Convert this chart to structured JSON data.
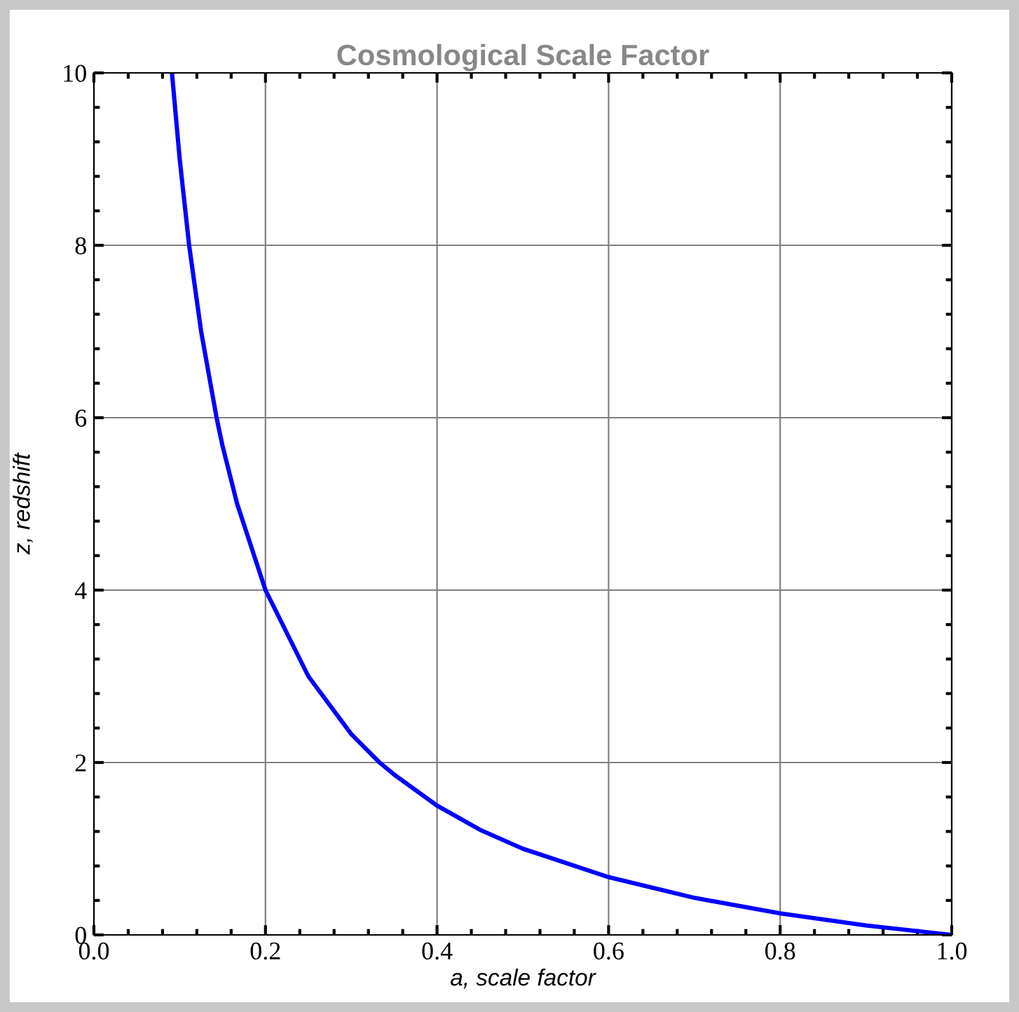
{
  "chart_data": {
    "type": "line",
    "title": "Cosmological Scale Factor",
    "xlabel": "a, scale factor",
    "ylabel": "z, redshift",
    "x": [
      0.091,
      0.1,
      0.111,
      0.125,
      0.143,
      0.15,
      0.167,
      0.2,
      0.25,
      0.3,
      0.333,
      0.35,
      0.4,
      0.45,
      0.5,
      0.6,
      0.7,
      0.8,
      0.9,
      1.0
    ],
    "series": [
      {
        "color": "#0000ff",
        "values": [
          10.0,
          9.0,
          8.0,
          7.0,
          6.0,
          5.67,
          5.0,
          4.0,
          3.0,
          2.33,
          2.0,
          1.86,
          1.5,
          1.22,
          1.0,
          0.67,
          0.43,
          0.25,
          0.11,
          0.0
        ]
      }
    ],
    "xlim": [
      0.0,
      1.0
    ],
    "ylim": [
      0,
      10
    ],
    "xticks": [
      {
        "value": 0.0,
        "label": "0.0"
      },
      {
        "value": 0.2,
        "label": "0.2"
      },
      {
        "value": 0.4,
        "label": "0.4"
      },
      {
        "value": 0.6,
        "label": "0.6"
      },
      {
        "value": 0.8,
        "label": "0.8"
      },
      {
        "value": 1.0,
        "label": "1.0"
      }
    ],
    "yticks": [
      0,
      2,
      4,
      6,
      8,
      10
    ],
    "grid": true,
    "marker": "none",
    "line_style": "solid"
  }
}
